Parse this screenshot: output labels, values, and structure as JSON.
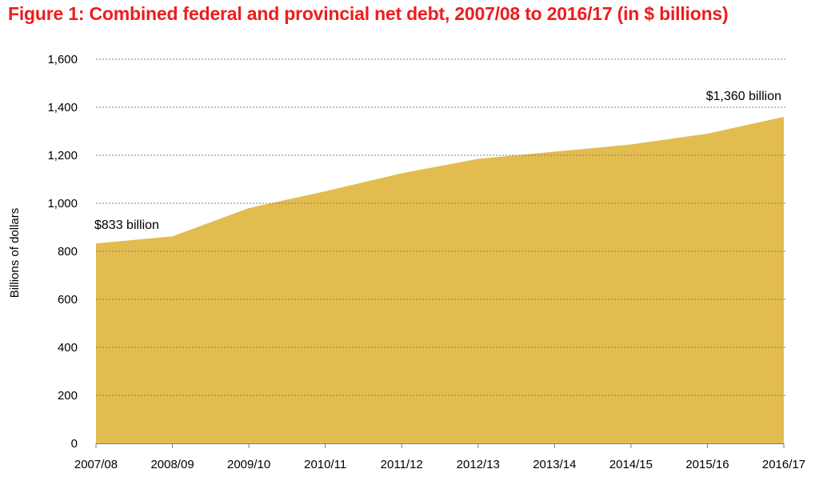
{
  "chart_data": {
    "type": "area",
    "title": "Figure 1: Combined federal and provincial net debt, 2007/08 to 2016/17 (in $  billions)",
    "xlabel": "",
    "ylabel": "Billions of dollars",
    "categories": [
      "2007/08",
      "2008/09",
      "2009/10",
      "2010/11",
      "2011/12",
      "2012/13",
      "2013/14",
      "2014/15",
      "2015/16",
      "2016/17"
    ],
    "values": [
      833,
      862,
      980,
      1050,
      1125,
      1185,
      1215,
      1245,
      1290,
      1360
    ],
    "ylim": [
      0,
      1600
    ],
    "yticks": [
      0,
      200,
      400,
      600,
      800,
      1000,
      1200,
      1400,
      1600
    ],
    "ytick_labels": [
      "0",
      "200",
      "400",
      "600",
      "800",
      "1,000",
      "1,200",
      "1,400",
      "1,600"
    ],
    "grid": true,
    "legend": "none",
    "annotations": [
      {
        "text": "$833 billion",
        "category": "2007/08",
        "value": 833
      },
      {
        "text": "$1,360 billion",
        "category": "2016/17",
        "value": 1360
      }
    ],
    "colors": {
      "area": "#E3BC4F",
      "title": "#EE1C1C",
      "grid": "#7F7F7F",
      "axis": "#7F7F7F"
    }
  }
}
